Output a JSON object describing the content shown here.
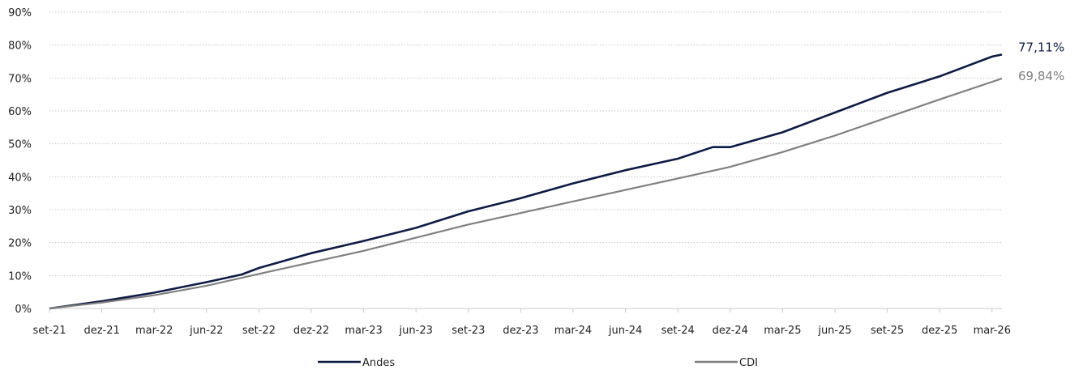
{
  "chart_data": {
    "type": "line",
    "title": "",
    "xlabel": "",
    "ylabel": "",
    "ylim": [
      0,
      90
    ],
    "y_ticks": [
      "0%",
      "10%",
      "20%",
      "30%",
      "40%",
      "50%",
      "60%",
      "70%",
      "80%",
      "90%"
    ],
    "x_ticks": [
      "set-21",
      "dez-21",
      "mar-22",
      "jun-22",
      "set-22",
      "dez-22",
      "mar-23",
      "jun-23",
      "set-23",
      "dez-23",
      "mar-24",
      "jun-24",
      "set-24",
      "dez-24",
      "mar-25",
      "jun-25",
      "set-25",
      "dez-25",
      "mar-26"
    ],
    "grid": "horizontal-dotted",
    "legend_position": "bottom",
    "series": [
      {
        "name": "Andes",
        "color": "#0d1b45",
        "end_label": "77,11%",
        "x": [
          "set-21",
          "dez-21",
          "mar-22",
          "jun-22",
          "ago-22",
          "set-22",
          "dez-22",
          "mar-23",
          "jun-23",
          "set-23",
          "dez-23",
          "mar-24",
          "jun-24",
          "set-24",
          "nov-24",
          "dez-24",
          "mar-25",
          "jun-25",
          "set-25",
          "dez-25",
          "mar-26",
          "abr-26"
        ],
        "values": [
          0,
          2.2,
          4.8,
          8.0,
          10.3,
          12.3,
          16.8,
          20.5,
          24.5,
          29.5,
          33.5,
          38.0,
          42.0,
          45.5,
          49.0,
          49.0,
          53.5,
          59.5,
          65.5,
          70.5,
          76.5,
          77.11
        ]
      },
      {
        "name": "CDI",
        "color": "#808080",
        "end_label": "69,84%",
        "x": [
          "set-21",
          "dez-21",
          "mar-22",
          "jun-22",
          "set-22",
          "dez-22",
          "mar-23",
          "jun-23",
          "set-23",
          "dez-23",
          "mar-24",
          "jun-24",
          "set-24",
          "dez-24",
          "mar-25",
          "jun-25",
          "set-25",
          "dez-25",
          "abr-26"
        ],
        "values": [
          0,
          1.8,
          4.0,
          6.9,
          10.5,
          14.0,
          17.5,
          21.5,
          25.5,
          29.0,
          32.5,
          36.0,
          39.5,
          43.0,
          47.5,
          52.5,
          58.0,
          63.5,
          69.84
        ]
      }
    ]
  }
}
